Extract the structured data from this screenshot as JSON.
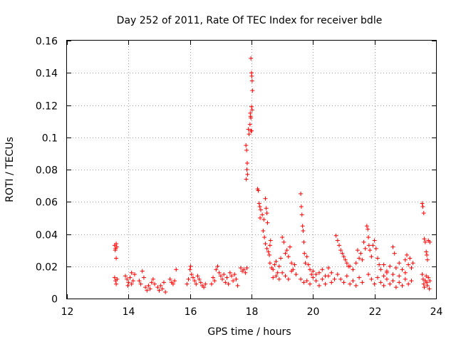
{
  "chart_data": {
    "type": "scatter",
    "title": "Day 252 of 2011, Rate Of TEC Index for receiver bdle",
    "xlabel": "GPS time / hours",
    "ylabel": "ROTI / TECUs",
    "xlim": [
      12,
      24
    ],
    "ylim": [
      0,
      0.16
    ],
    "x_ticks": [
      12,
      14,
      16,
      18,
      20,
      22,
      24
    ],
    "y_ticks": [
      0,
      0.02,
      0.04,
      0.06,
      0.08,
      0.1,
      0.12,
      0.14,
      0.16
    ],
    "x_tick_labels": [
      "12",
      "14",
      "16",
      "18",
      "20",
      "22",
      "24"
    ],
    "y_tick_labels": [
      "0",
      "0.02",
      "0.04",
      "0.06",
      "0.08",
      "0.1",
      "0.12",
      "0.14",
      "0.16"
    ],
    "grid": true,
    "marker": "+",
    "series": [
      {
        "name": "ROTI",
        "color": "#ff0000",
        "points": [
          [
            13.55,
            0.033
          ],
          [
            13.58,
            0.031
          ],
          [
            13.6,
            0.034
          ],
          [
            13.62,
            0.032
          ],
          [
            13.57,
            0.03
          ],
          [
            13.6,
            0.025
          ],
          [
            13.55,
            0.013
          ],
          [
            13.58,
            0.011
          ],
          [
            13.6,
            0.009
          ],
          [
            13.63,
            0.012
          ],
          [
            13.9,
            0.014
          ],
          [
            13.95,
            0.012
          ],
          [
            14.0,
            0.01
          ],
          [
            14.05,
            0.013
          ],
          [
            14.1,
            0.016
          ],
          [
            14.15,
            0.011
          ],
          [
            14.1,
            0.009
          ],
          [
            13.98,
            0.008
          ],
          [
            14.2,
            0.015
          ],
          [
            14.35,
            0.011
          ],
          [
            14.4,
            0.009
          ],
          [
            14.45,
            0.017
          ],
          [
            14.5,
            0.013
          ],
          [
            14.55,
            0.007
          ],
          [
            14.6,
            0.005
          ],
          [
            14.65,
            0.008
          ],
          [
            14.7,
            0.006
          ],
          [
            14.75,
            0.01
          ],
          [
            14.8,
            0.012
          ],
          [
            14.85,
            0.009
          ],
          [
            14.95,
            0.007
          ],
          [
            15.0,
            0.005
          ],
          [
            15.05,
            0.008
          ],
          [
            15.1,
            0.006
          ],
          [
            15.15,
            0.01
          ],
          [
            15.2,
            0.004
          ],
          [
            15.35,
            0.012
          ],
          [
            15.4,
            0.01
          ],
          [
            15.45,
            0.009
          ],
          [
            15.5,
            0.011
          ],
          [
            15.55,
            0.018
          ],
          [
            15.9,
            0.009
          ],
          [
            15.95,
            0.012
          ],
          [
            16.0,
            0.018
          ],
          [
            16.02,
            0.02
          ],
          [
            16.05,
            0.015
          ],
          [
            16.1,
            0.013
          ],
          [
            16.15,
            0.011
          ],
          [
            16.2,
            0.009
          ],
          [
            16.25,
            0.014
          ],
          [
            16.3,
            0.012
          ],
          [
            16.35,
            0.01
          ],
          [
            16.4,
            0.008
          ],
          [
            16.45,
            0.007
          ],
          [
            16.5,
            0.009
          ],
          [
            16.7,
            0.009
          ],
          [
            16.75,
            0.013
          ],
          [
            16.8,
            0.011
          ],
          [
            16.85,
            0.018
          ],
          [
            16.9,
            0.02
          ],
          [
            16.95,
            0.016
          ],
          [
            17.0,
            0.014
          ],
          [
            17.05,
            0.012
          ],
          [
            17.1,
            0.015
          ],
          [
            17.15,
            0.01
          ],
          [
            17.2,
            0.013
          ],
          [
            17.25,
            0.009
          ],
          [
            17.3,
            0.016
          ],
          [
            17.35,
            0.014
          ],
          [
            17.4,
            0.011
          ],
          [
            17.45,
            0.015
          ],
          [
            17.5,
            0.012
          ],
          [
            17.55,
            0.008
          ],
          [
            17.65,
            0.019
          ],
          [
            17.7,
            0.017
          ],
          [
            17.75,
            0.018
          ],
          [
            17.8,
            0.016
          ],
          [
            17.85,
            0.019
          ],
          [
            17.82,
            0.095
          ],
          [
            17.84,
            0.092
          ],
          [
            17.86,
            0.084
          ],
          [
            17.85,
            0.08
          ],
          [
            17.87,
            0.077
          ],
          [
            17.83,
            0.074
          ],
          [
            17.9,
            0.105
          ],
          [
            17.92,
            0.102
          ],
          [
            17.95,
            0.108
          ],
          [
            17.98,
            0.104
          ],
          [
            18.0,
            0.104
          ],
          [
            17.96,
            0.115
          ],
          [
            17.98,
            0.112
          ],
          [
            18.0,
            0.119
          ],
          [
            18.02,
            0.117
          ],
          [
            17.97,
            0.113
          ],
          [
            17.98,
            0.149
          ],
          [
            18.0,
            0.14
          ],
          [
            18.01,
            0.138
          ],
          [
            18.02,
            0.135
          ],
          [
            18.03,
            0.129
          ],
          [
            18.2,
            0.068
          ],
          [
            18.22,
            0.067
          ],
          [
            18.25,
            0.059
          ],
          [
            18.27,
            0.057
          ],
          [
            18.3,
            0.055
          ],
          [
            18.28,
            0.05
          ],
          [
            18.35,
            0.052
          ],
          [
            18.4,
            0.049
          ],
          [
            18.45,
            0.062
          ],
          [
            18.48,
            0.056
          ],
          [
            18.5,
            0.053
          ],
          [
            18.52,
            0.047
          ],
          [
            18.38,
            0.042
          ],
          [
            18.42,
            0.038
          ],
          [
            18.45,
            0.034
          ],
          [
            18.5,
            0.031
          ],
          [
            18.55,
            0.029
          ],
          [
            18.6,
            0.033
          ],
          [
            18.62,
            0.036
          ],
          [
            18.58,
            0.027
          ],
          [
            18.6,
            0.022
          ],
          [
            18.65,
            0.019
          ],
          [
            18.7,
            0.018
          ],
          [
            18.75,
            0.021
          ],
          [
            18.8,
            0.023
          ],
          [
            18.85,
            0.016
          ],
          [
            18.9,
            0.02
          ],
          [
            18.95,
            0.025
          ],
          [
            19.0,
            0.038
          ],
          [
            19.05,
            0.035
          ],
          [
            19.1,
            0.028
          ],
          [
            19.15,
            0.03
          ],
          [
            19.2,
            0.026
          ],
          [
            19.25,
            0.032
          ],
          [
            19.3,
            0.022
          ],
          [
            19.35,
            0.018
          ],
          [
            19.4,
            0.021
          ],
          [
            19.45,
            0.015
          ],
          [
            18.7,
            0.013
          ],
          [
            18.8,
            0.014
          ],
          [
            18.9,
            0.012
          ],
          [
            19.0,
            0.016
          ],
          [
            19.1,
            0.014
          ],
          [
            19.2,
            0.012
          ],
          [
            19.3,
            0.017
          ],
          [
            19.6,
            0.065
          ],
          [
            19.62,
            0.057
          ],
          [
            19.64,
            0.052
          ],
          [
            19.66,
            0.045
          ],
          [
            19.68,
            0.042
          ],
          [
            19.7,
            0.035
          ],
          [
            19.72,
            0.028
          ],
          [
            19.75,
            0.022
          ],
          [
            19.8,
            0.026
          ],
          [
            19.85,
            0.021
          ],
          [
            19.9,
            0.018
          ],
          [
            19.95,
            0.015
          ],
          [
            19.6,
            0.012
          ],
          [
            19.7,
            0.01
          ],
          [
            19.8,
            0.011
          ],
          [
            19.9,
            0.009
          ],
          [
            20.0,
            0.013
          ],
          [
            20.1,
            0.011
          ],
          [
            20.2,
            0.008
          ],
          [
            20.3,
            0.012
          ],
          [
            20.4,
            0.009
          ],
          [
            20.5,
            0.014
          ],
          [
            20.6,
            0.01
          ],
          [
            20.7,
            0.012
          ],
          [
            20.0,
            0.017
          ],
          [
            20.1,
            0.015
          ],
          [
            20.2,
            0.016
          ],
          [
            20.3,
            0.018
          ],
          [
            20.4,
            0.014
          ],
          [
            20.5,
            0.019
          ],
          [
            20.6,
            0.016
          ],
          [
            20.75,
            0.039
          ],
          [
            20.8,
            0.036
          ],
          [
            20.85,
            0.033
          ],
          [
            20.9,
            0.03
          ],
          [
            20.95,
            0.028
          ],
          [
            21.0,
            0.026
          ],
          [
            21.05,
            0.024
          ],
          [
            21.1,
            0.022
          ],
          [
            21.15,
            0.02
          ],
          [
            20.8,
            0.015
          ],
          [
            20.9,
            0.012
          ],
          [
            21.0,
            0.01
          ],
          [
            21.1,
            0.014
          ],
          [
            21.2,
            0.009
          ],
          [
            21.3,
            0.011
          ],
          [
            21.4,
            0.008
          ],
          [
            21.5,
            0.013
          ],
          [
            21.6,
            0.01
          ],
          [
            21.2,
            0.02
          ],
          [
            21.3,
            0.018
          ],
          [
            21.4,
            0.022
          ],
          [
            21.45,
            0.03
          ],
          [
            21.5,
            0.025
          ],
          [
            21.55,
            0.028
          ],
          [
            21.6,
            0.024
          ],
          [
            21.65,
            0.035
          ],
          [
            21.7,
            0.031
          ],
          [
            21.75,
            0.045
          ],
          [
            21.78,
            0.043
          ],
          [
            21.8,
            0.038
          ],
          [
            21.82,
            0.033
          ],
          [
            21.85,
            0.03
          ],
          [
            21.9,
            0.026
          ],
          [
            21.95,
            0.033
          ],
          [
            22.0,
            0.036
          ],
          [
            22.05,
            0.031
          ],
          [
            22.1,
            0.025
          ],
          [
            22.15,
            0.021
          ],
          [
            21.8,
            0.015
          ],
          [
            21.9,
            0.012
          ],
          [
            22.0,
            0.009
          ],
          [
            22.1,
            0.013
          ],
          [
            22.2,
            0.01
          ],
          [
            22.3,
            0.008
          ],
          [
            22.4,
            0.012
          ],
          [
            22.5,
            0.009
          ],
          [
            22.6,
            0.011
          ],
          [
            22.7,
            0.007
          ],
          [
            22.8,
            0.01
          ],
          [
            22.9,
            0.008
          ],
          [
            23.0,
            0.012
          ],
          [
            23.1,
            0.009
          ],
          [
            23.2,
            0.011
          ],
          [
            22.2,
            0.018
          ],
          [
            22.3,
            0.021
          ],
          [
            22.4,
            0.017
          ],
          [
            22.5,
            0.02
          ],
          [
            22.6,
            0.032
          ],
          [
            22.65,
            0.028
          ],
          [
            22.7,
            0.019
          ],
          [
            22.8,
            0.022
          ],
          [
            22.9,
            0.018
          ],
          [
            23.0,
            0.024
          ],
          [
            23.05,
            0.027
          ],
          [
            23.1,
            0.021
          ],
          [
            23.15,
            0.025
          ],
          [
            23.2,
            0.019
          ],
          [
            23.25,
            0.022
          ],
          [
            22.3,
            0.014
          ],
          [
            22.4,
            0.016
          ],
          [
            22.6,
            0.015
          ],
          [
            22.8,
            0.014
          ],
          [
            23.0,
            0.016
          ],
          [
            23.55,
            0.059
          ],
          [
            23.57,
            0.057
          ],
          [
            23.6,
            0.053
          ],
          [
            23.62,
            0.037
          ],
          [
            23.65,
            0.035
          ],
          [
            23.68,
            0.029
          ],
          [
            23.7,
            0.027
          ],
          [
            23.72,
            0.024
          ],
          [
            23.75,
            0.036
          ],
          [
            23.8,
            0.035
          ],
          [
            23.55,
            0.015
          ],
          [
            23.58,
            0.012
          ],
          [
            23.6,
            0.009
          ],
          [
            23.62,
            0.007
          ],
          [
            23.65,
            0.011
          ],
          [
            23.68,
            0.014
          ],
          [
            23.7,
            0.01
          ],
          [
            23.72,
            0.008
          ],
          [
            23.75,
            0.013
          ],
          [
            23.78,
            0.006
          ],
          [
            23.8,
            0.011
          ]
        ]
      }
    ]
  }
}
